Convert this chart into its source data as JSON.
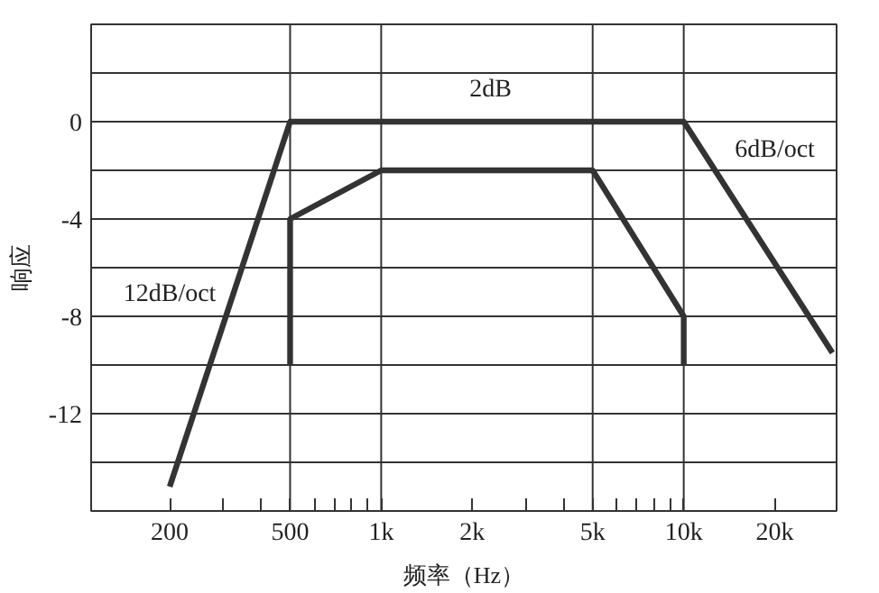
{
  "chart_data": {
    "type": "line",
    "xlabel": "频率（Hz）",
    "ylabel": "响应",
    "log": "x",
    "xlim": [
      110,
      32000
    ],
    "ylim": [
      -16,
      4
    ],
    "xticks": [
      200,
      {
        "value": 300,
        "label": null
      },
      {
        "value": 400,
        "label": null
      },
      500,
      {
        "value": 600,
        "label": null
      },
      {
        "value": 700,
        "label": null
      },
      {
        "value": 800,
        "label": null
      },
      {
        "value": 900,
        "label": null
      },
      {
        "value": 1000,
        "label": "1k"
      },
      {
        "value": 2000,
        "label": "2k"
      },
      {
        "value": 3000,
        "label": null
      },
      {
        "value": 4000,
        "label": null
      },
      {
        "value": 5000,
        "label": "5k"
      },
      {
        "value": 6000,
        "label": null
      },
      {
        "value": 7000,
        "label": null
      },
      {
        "value": 8000,
        "label": null
      },
      {
        "value": 9000,
        "label": null
      },
      {
        "value": 10000,
        "label": "10k"
      },
      {
        "value": 20000,
        "label": "20k"
      }
    ],
    "yticks": [
      {
        "value": -14,
        "label": null
      },
      -12,
      {
        "value": -10,
        "label": null
      },
      -8,
      {
        "value": -6,
        "label": null
      },
      -4,
      {
        "value": -2,
        "label": null
      },
      0,
      {
        "value": 2,
        "label": null
      }
    ],
    "grid": "y",
    "marker": "none",
    "line_style": "solid",
    "series": [
      {
        "color": "#333333",
        "x": [
          200,
          500,
          10000,
          31000
        ],
        "values": [
          -15,
          0,
          0,
          -9.5
        ]
      },
      {
        "color": "#333333",
        "x": [
          500,
          500,
          1000,
          5000,
          10000,
          10000
        ],
        "values": [
          -10,
          -4,
          -2,
          -2,
          -8,
          -10
        ]
      }
    ],
    "ref_lines": [
      {
        "axis": "x",
        "value": 500,
        "color": "#333333"
      },
      {
        "axis": "x",
        "value": 1000,
        "color": "#333333"
      },
      {
        "axis": "x",
        "value": 5000,
        "color": "#333333"
      },
      {
        "axis": "x",
        "value": 10000,
        "color": "#333333"
      }
    ],
    "annotations": [
      "2dB",
      "6dB/oct",
      "12dB/oct"
    ]
  }
}
